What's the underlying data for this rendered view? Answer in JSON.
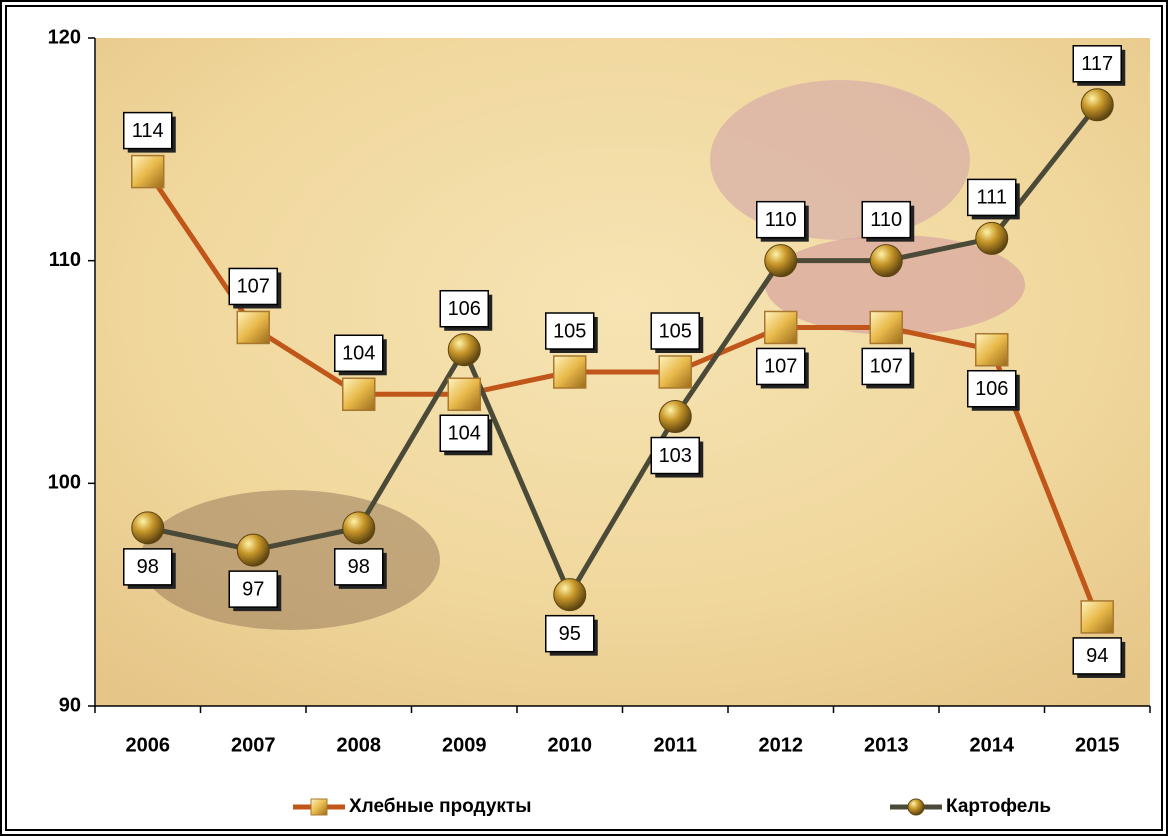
{
  "chart_data": {
    "type": "line",
    "categories": [
      "2006",
      "2007",
      "2008",
      "2009",
      "2010",
      "2011",
      "2012",
      "2013",
      "2014",
      "2015"
    ],
    "series": [
      {
        "name": "Хлебные продукты",
        "color": "#c0561a",
        "marker": "square",
        "values": [
          114,
          107,
          104,
          104,
          105,
          105,
          107,
          107,
          106,
          94
        ]
      },
      {
        "name": "Картофель",
        "color": "#4b4a38",
        "marker": "circle",
        "values": [
          98,
          97,
          98,
          106,
          95,
          103,
          110,
          110,
          111,
          117
        ]
      }
    ],
    "ylim": [
      90,
      120
    ],
    "yticks": [
      90,
      100,
      110,
      120
    ],
    "legend": "bottom"
  }
}
